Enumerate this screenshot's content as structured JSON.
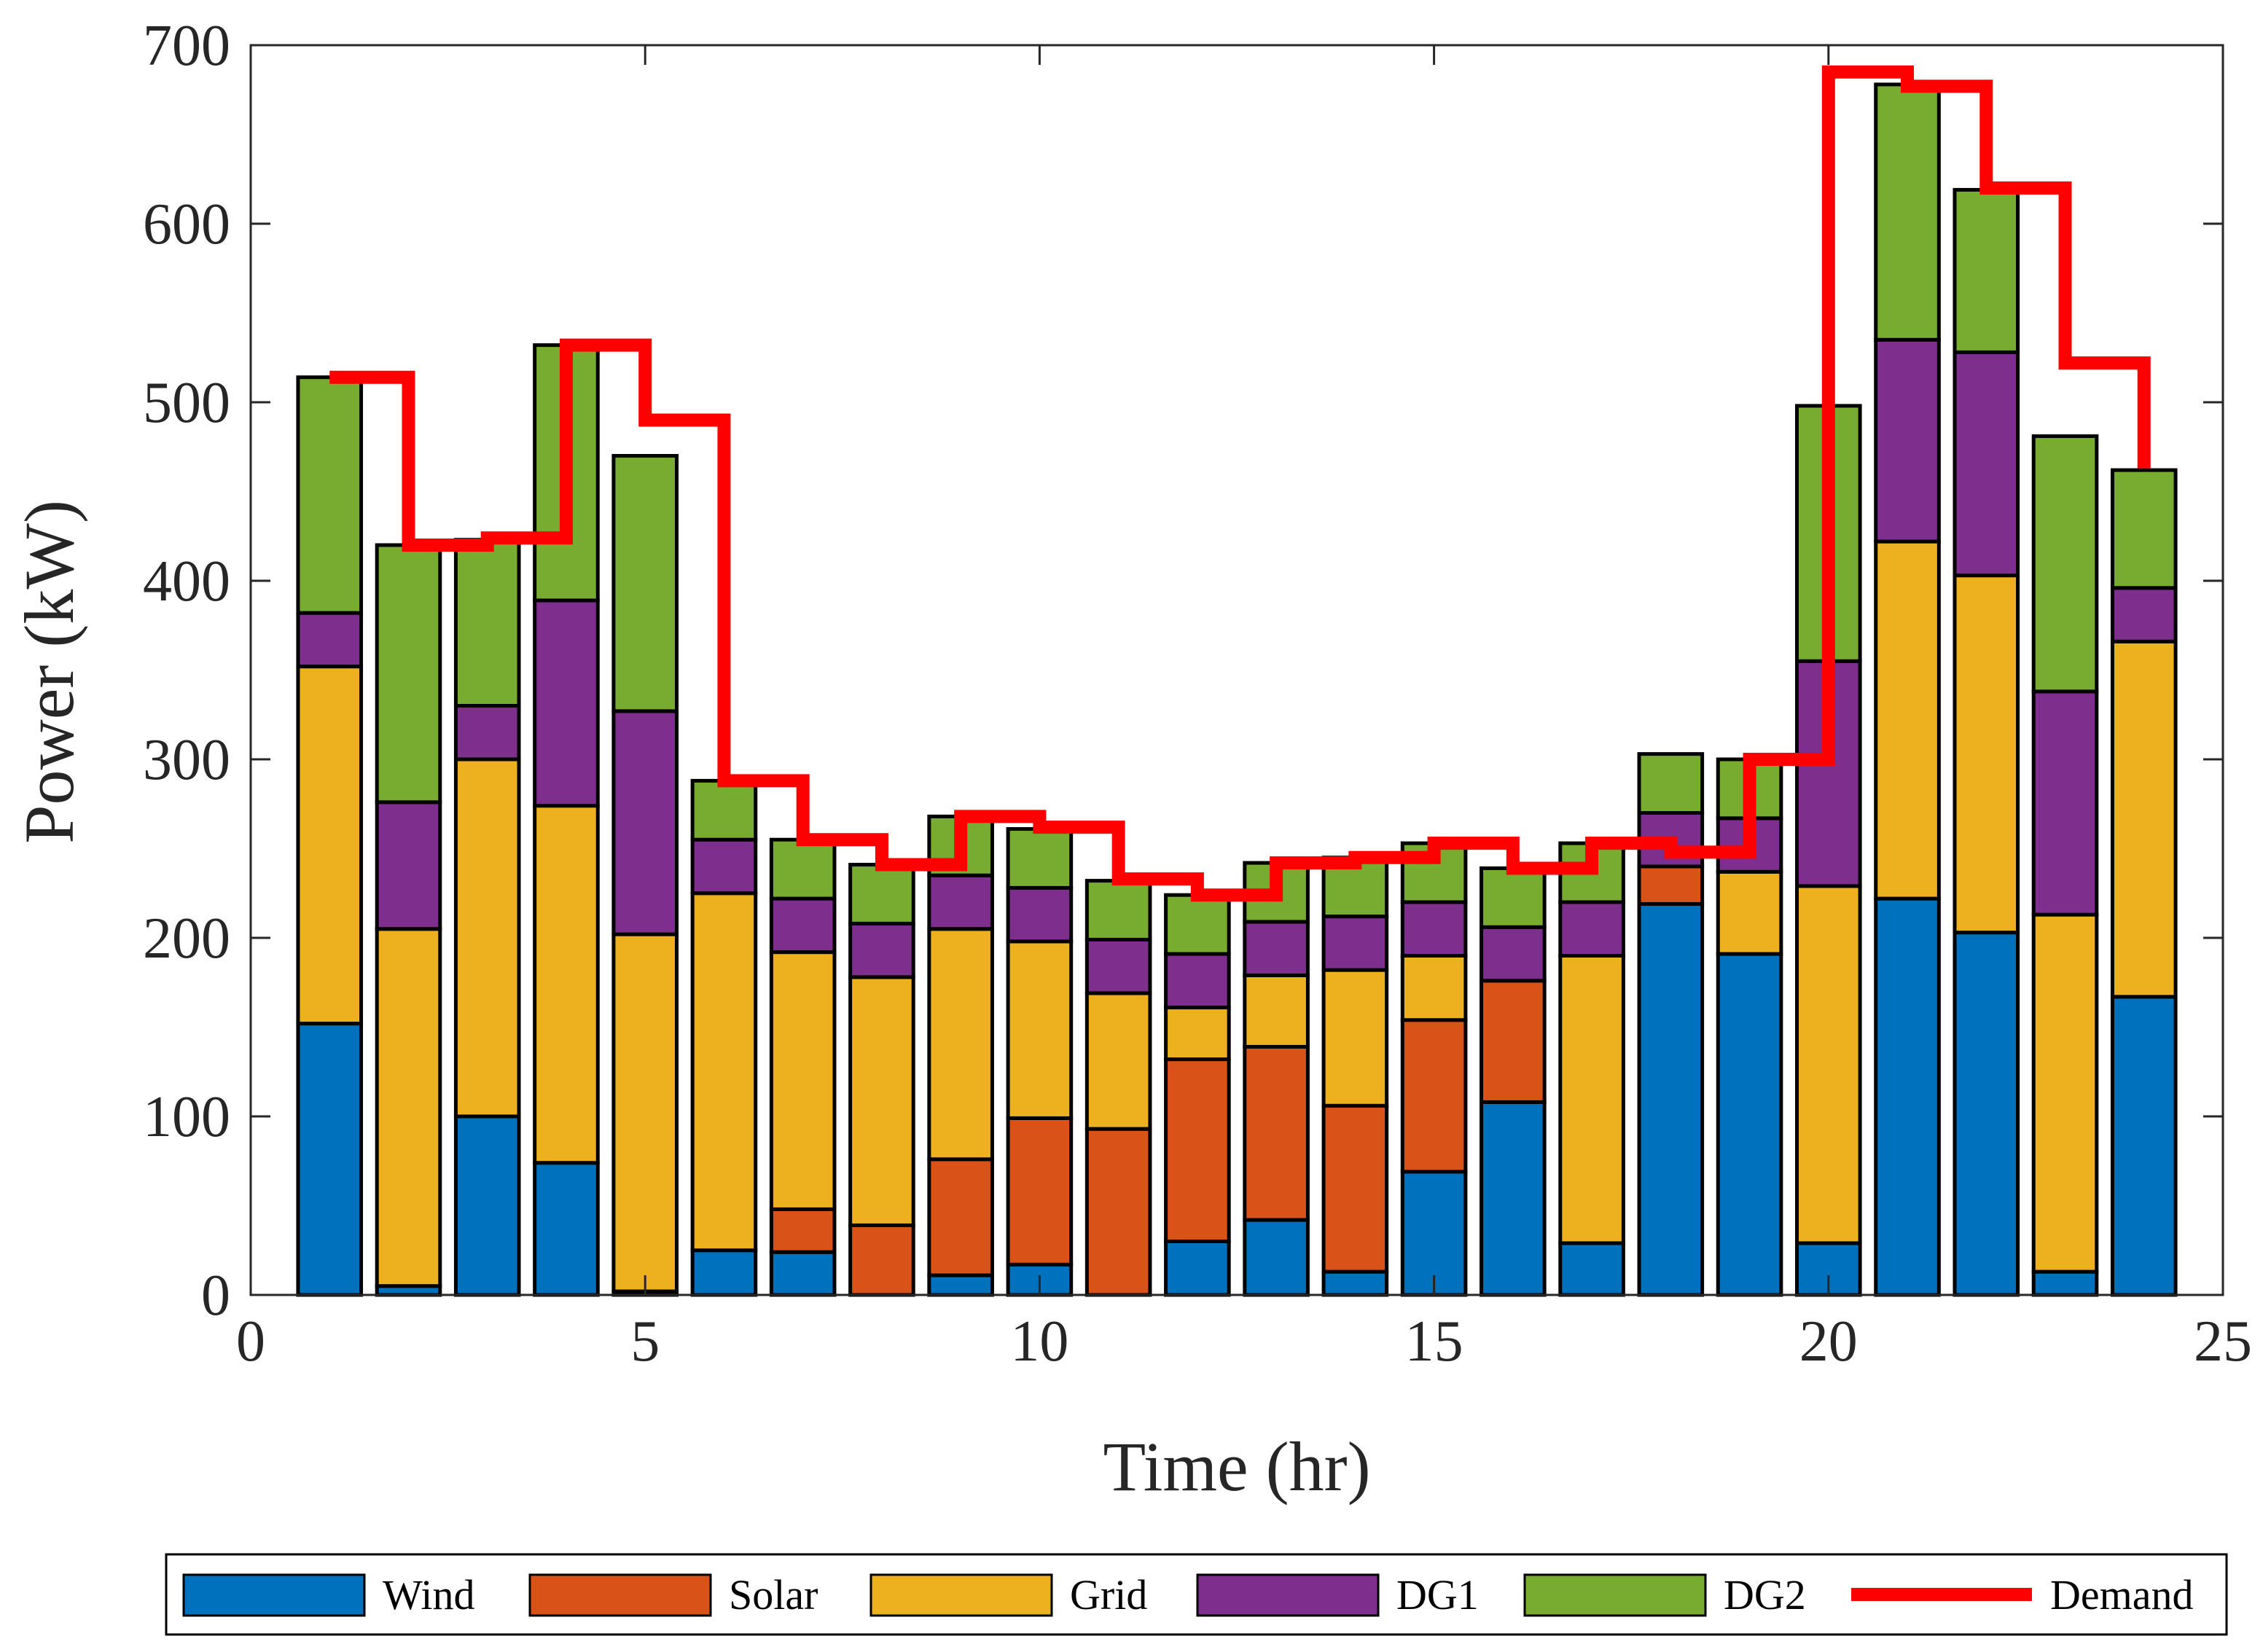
{
  "chart_data": {
    "type": "bar",
    "stacked": true,
    "xlabel": "Time (hr)",
    "ylabel": "Power (kW)",
    "xlim": [
      0,
      25
    ],
    "ylim": [
      0,
      700
    ],
    "xticks": [
      "0",
      "5",
      "10",
      "15",
      "20",
      "25"
    ],
    "yticks": [
      "0",
      "100",
      "200",
      "300",
      "400",
      "500",
      "600",
      "700"
    ],
    "categories": [
      1,
      2,
      3,
      4,
      5,
      6,
      7,
      8,
      9,
      10,
      11,
      12,
      13,
      14,
      15,
      16,
      17,
      18,
      19,
      20,
      21,
      22,
      23,
      24
    ],
    "series": [
      {
        "name": "Wind",
        "color": "#0072BD",
        "values": [
          152,
          5,
          100,
          74,
          2,
          25,
          24,
          0,
          11,
          17,
          0,
          30,
          42,
          13,
          69,
          108,
          29,
          219,
          191,
          29,
          222,
          203,
          13,
          167
        ]
      },
      {
        "name": "Solar",
        "color": "#D95319",
        "values": [
          0,
          0,
          0,
          0,
          0,
          0,
          24,
          39,
          65,
          82,
          93,
          102,
          97,
          93,
          85,
          68,
          0,
          21,
          0,
          0,
          0,
          0,
          0,
          0
        ]
      },
      {
        "name": "Grid",
        "color": "#EDB120",
        "values": [
          200,
          200,
          200,
          200,
          200,
          200,
          144,
          139,
          129,
          99,
          76,
          29,
          40,
          76,
          36,
          0,
          161,
          0,
          46,
          200,
          200,
          200,
          200,
          199
        ]
      },
      {
        "name": "DG1",
        "color": "#7E2F8E",
        "values": [
          30,
          71,
          30,
          115,
          125,
          30,
          30,
          30,
          30,
          30,
          30,
          30,
          30,
          30,
          30,
          30,
          30,
          30,
          30,
          126,
          113,
          125,
          125,
          30
        ]
      },
      {
        "name": "DG2",
        "color": "#77AC30",
        "values": [
          132,
          144,
          93,
          143,
          143,
          33,
          33,
          33,
          33,
          33,
          33,
          33,
          33,
          33,
          33,
          33,
          33,
          33,
          33,
          143,
          143,
          91,
          143,
          66
        ]
      }
    ],
    "demand": {
      "name": "Demand",
      "color": "#FF0000",
      "values": [
        514,
        420,
        424,
        532,
        490,
        288,
        255,
        241,
        268,
        262,
        233,
        224,
        242,
        245,
        253,
        239,
        253,
        248,
        300,
        685,
        677,
        620,
        522,
        463
      ]
    },
    "legend": {
      "position": "bottom",
      "orientation": "horizontal",
      "entries": [
        "Wind",
        "Solar",
        "Grid",
        "DG1",
        "DG2",
        "Demand"
      ]
    }
  }
}
